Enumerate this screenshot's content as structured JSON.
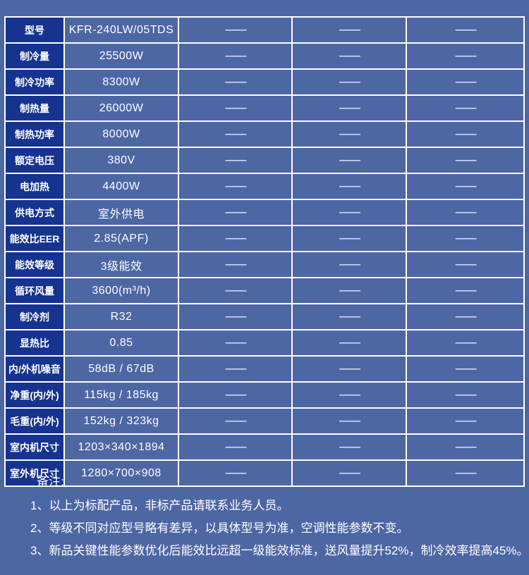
{
  "page": {
    "background_color": "#4d66a4",
    "label_cell_color": "#15338f",
    "border_color": "#ffffff",
    "text_color": "#ffffff",
    "dash_color": "#d2dcf1"
  },
  "table": {
    "dash": "——",
    "rows": [
      {
        "label": "型号",
        "value": "KFR-240LW/05TDS"
      },
      {
        "label": "制冷量",
        "value": "25500W"
      },
      {
        "label": "制冷功率",
        "value": "8300W"
      },
      {
        "label": "制热量",
        "value": "26000W"
      },
      {
        "label": "制热功率",
        "value": "8000W"
      },
      {
        "label": "额定电压",
        "value": "380V"
      },
      {
        "label": "电加热",
        "value": "4400W"
      },
      {
        "label": "供电方式",
        "value": "室外供电"
      },
      {
        "label": "能效比EER",
        "value": "2.85(APF)"
      },
      {
        "label": "能效等级",
        "value": "3级能效"
      },
      {
        "label": "循环风量",
        "value": "3600(m³/h)"
      },
      {
        "label": "制冷剂",
        "value": "R32"
      },
      {
        "label": "显热比",
        "value": "0.85"
      },
      {
        "label": "内/外机噪音",
        "value": "58dB / 67dB"
      },
      {
        "label": "净重(内/外)",
        "value": "115kg / 185kg"
      },
      {
        "label": "毛重(内/外)",
        "value": "152kg / 323kg"
      },
      {
        "label": "室内机尺寸",
        "value": "1203×340×1894"
      },
      {
        "label": "室外机尺寸",
        "value": "1280×700×908"
      }
    ]
  },
  "notes": {
    "title": "备注:",
    "items": [
      "1、以上为标配产品，非标产品请联系业务人员。",
      "2、等级不同对应型号略有差异，以具体型号为准，空调性能参数不变。",
      "3、新品关键性能参数优化后能效比远超一级能效标准，送风量提升52%，制冷效率提高45%。"
    ]
  }
}
